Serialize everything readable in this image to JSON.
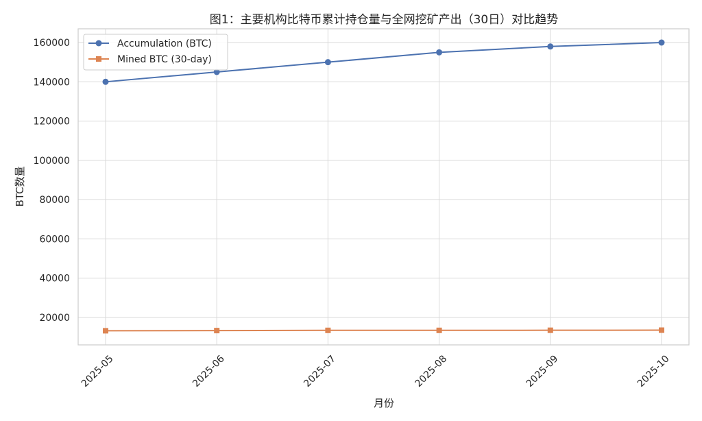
{
  "chart_data": {
    "type": "line",
    "title": "图1：主要机构比特币累计持仓量与全网挖矿产出（30日）对比趋势",
    "xlabel": "月份",
    "ylabel": "BTC数量",
    "categories": [
      "2025-05",
      "2025-06",
      "2025-07",
      "2025-08",
      "2025-09",
      "2025-10"
    ],
    "ylim": [
      6000,
      167000
    ],
    "yticks": [
      20000,
      40000,
      60000,
      80000,
      100000,
      120000,
      140000,
      160000
    ],
    "grid": true,
    "legend_position": "top-left",
    "series": [
      {
        "name": "Accumulation (BTC)",
        "values": [
          140000,
          145000,
          150000,
          155000,
          158000,
          160000
        ],
        "color": "#4c72b0",
        "marker": "circle"
      },
      {
        "name": "Mined BTC (30-day)",
        "values": [
          13200,
          13300,
          13400,
          13400,
          13450,
          13500
        ],
        "color": "#dd8452",
        "marker": "square"
      }
    ]
  }
}
